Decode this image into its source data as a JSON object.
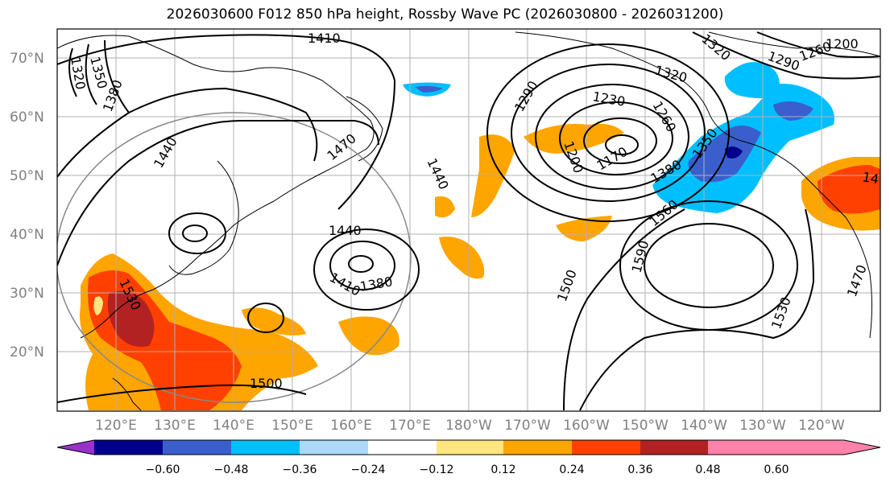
{
  "figure": {
    "title": "2026030600 F012 850 hPa height, Rossby Wave PC (2026030800 - 2026031200)"
  },
  "axes": {
    "lat_labels": [
      "70°N",
      "60°N",
      "50°N",
      "40°N",
      "30°N",
      "20°N"
    ],
    "lon_labels": [
      "120°E",
      "130°E",
      "140°E",
      "150°E",
      "160°E",
      "170°E",
      "180°W",
      "170°W",
      "160°W",
      "150°W",
      "140°W",
      "130°W",
      "120°W"
    ],
    "lat_range": [
      10,
      75
    ],
    "lon_range_east": [
      110,
      250
    ]
  },
  "contour_labels": [
    {
      "id": "c1410a",
      "text": "1410"
    },
    {
      "id": "c1350",
      "text": "1350"
    },
    {
      "id": "c1320a",
      "text": "1320"
    },
    {
      "id": "c1380a",
      "text": "1380"
    },
    {
      "id": "c1440a",
      "text": "1440"
    },
    {
      "id": "c1470a",
      "text": "1470"
    },
    {
      "id": "c1440b",
      "text": "1440"
    },
    {
      "id": "c1440c",
      "text": "1440"
    },
    {
      "id": "c1410b",
      "text": "1410"
    },
    {
      "id": "c1380b",
      "text": "1380"
    },
    {
      "id": "c1530a",
      "text": "1530"
    },
    {
      "id": "c1500a",
      "text": "1500"
    },
    {
      "id": "c1290a",
      "text": "1290"
    },
    {
      "id": "c1230",
      "text": "1230"
    },
    {
      "id": "c1260a",
      "text": "1260"
    },
    {
      "id": "c1200a",
      "text": "1200"
    },
    {
      "id": "c1170",
      "text": "1170"
    },
    {
      "id": "c1320b",
      "text": "1320"
    },
    {
      "id": "c1320c",
      "text": "1320"
    },
    {
      "id": "c1290b",
      "text": "1290"
    },
    {
      "id": "c1260b",
      "text": "1260"
    },
    {
      "id": "c1200b",
      "text": "1200"
    },
    {
      "id": "c1350b",
      "text": "1350"
    },
    {
      "id": "c1380c",
      "text": "1380"
    },
    {
      "id": "c1560",
      "text": "1560"
    },
    {
      "id": "c1590",
      "text": "1590"
    },
    {
      "id": "c1500b",
      "text": "1500"
    },
    {
      "id": "c1530b",
      "text": "1530"
    },
    {
      "id": "c1470b",
      "text": "1470"
    },
    {
      "id": "c14",
      "text": "14"
    }
  ],
  "colorbar": {
    "colors": [
      "#9932CC",
      "#00008B",
      "#3A5FCD",
      "#00BFFF",
      "#ADD8F7",
      "#FFFFFF",
      "#FFE680",
      "#FFA500",
      "#FF4000",
      "#B22222",
      "#FF82AB"
    ],
    "tick_labels": [
      "−0.60",
      "−0.48",
      "−0.36",
      "−0.24",
      "−0.12",
      "0.12",
      "0.24",
      "0.36",
      "0.48",
      "0.60"
    ]
  },
  "colors": {
    "grid": "#b0b0b0",
    "circle": "#888888",
    "contour": "#000000"
  }
}
